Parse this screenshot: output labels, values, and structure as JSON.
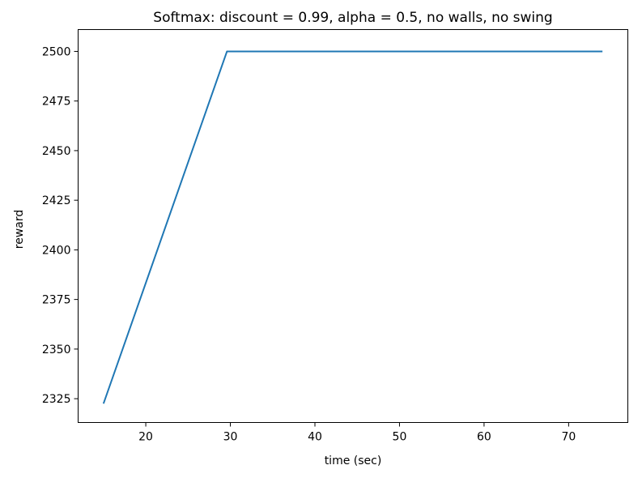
{
  "chart_data": {
    "type": "line",
    "title": "Softmax: discount = 0.99, alpha = 0.5, no walls, no swing",
    "xlabel": "time (sec)",
    "ylabel": "reward",
    "xlim": [
      12,
      77
    ],
    "ylim": [
      2313,
      2511
    ],
    "xticks": [
      20,
      30,
      40,
      50,
      60,
      70
    ],
    "xtick_labels": [
      "20",
      "30",
      "40",
      "50",
      "60",
      "70"
    ],
    "yticks": [
      2325,
      2350,
      2375,
      2400,
      2425,
      2450,
      2475,
      2500
    ],
    "ytick_labels": [
      "2325",
      "2350",
      "2375",
      "2400",
      "2425",
      "2450",
      "2475",
      "2500"
    ],
    "grid": false,
    "series": [
      {
        "color": "#1f77b4",
        "x": [
          15,
          29.6,
          74
        ],
        "y": [
          2322.5,
          2500,
          2500
        ]
      }
    ]
  }
}
